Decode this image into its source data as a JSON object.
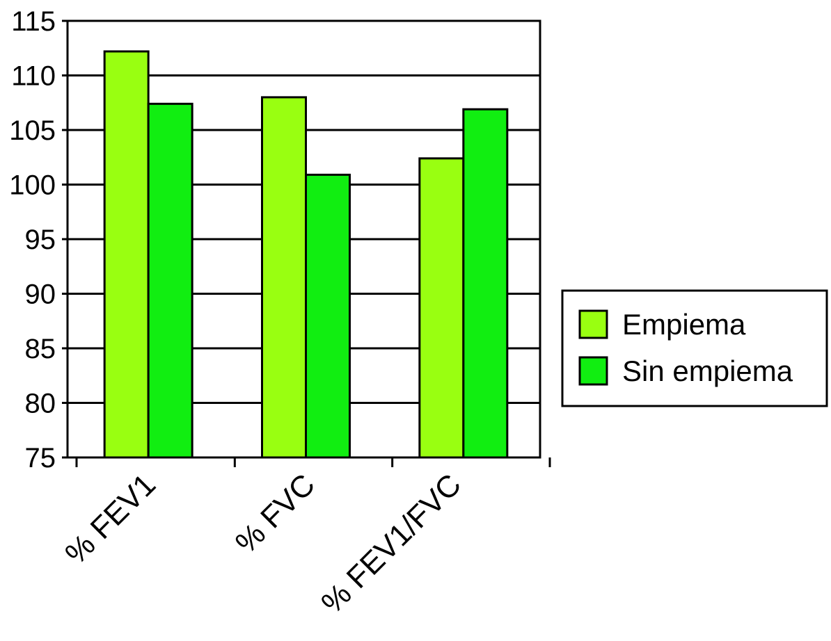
{
  "chart_data": {
    "type": "bar",
    "title": "",
    "xlabel": "",
    "ylabel": "",
    "categories": [
      "% FEV1",
      "% FVC",
      "% FEV1/FVC"
    ],
    "series": [
      {
        "name": "Empiema",
        "values": [
          112.2,
          108.0,
          102.4
        ],
        "color": "#99ff11"
      },
      {
        "name": "Sin empiema",
        "values": [
          107.4,
          100.9,
          106.9
        ],
        "color": "#11ee11"
      }
    ],
    "ylim": [
      75,
      115
    ],
    "yticks": [
      "75",
      "80",
      "85",
      "90",
      "95",
      "100",
      "105",
      "110",
      "115"
    ],
    "grid": "horizontal",
    "legend": "right"
  },
  "colors": {
    "background": "#ffffff",
    "axis": "#000000",
    "grid": "#000000"
  }
}
